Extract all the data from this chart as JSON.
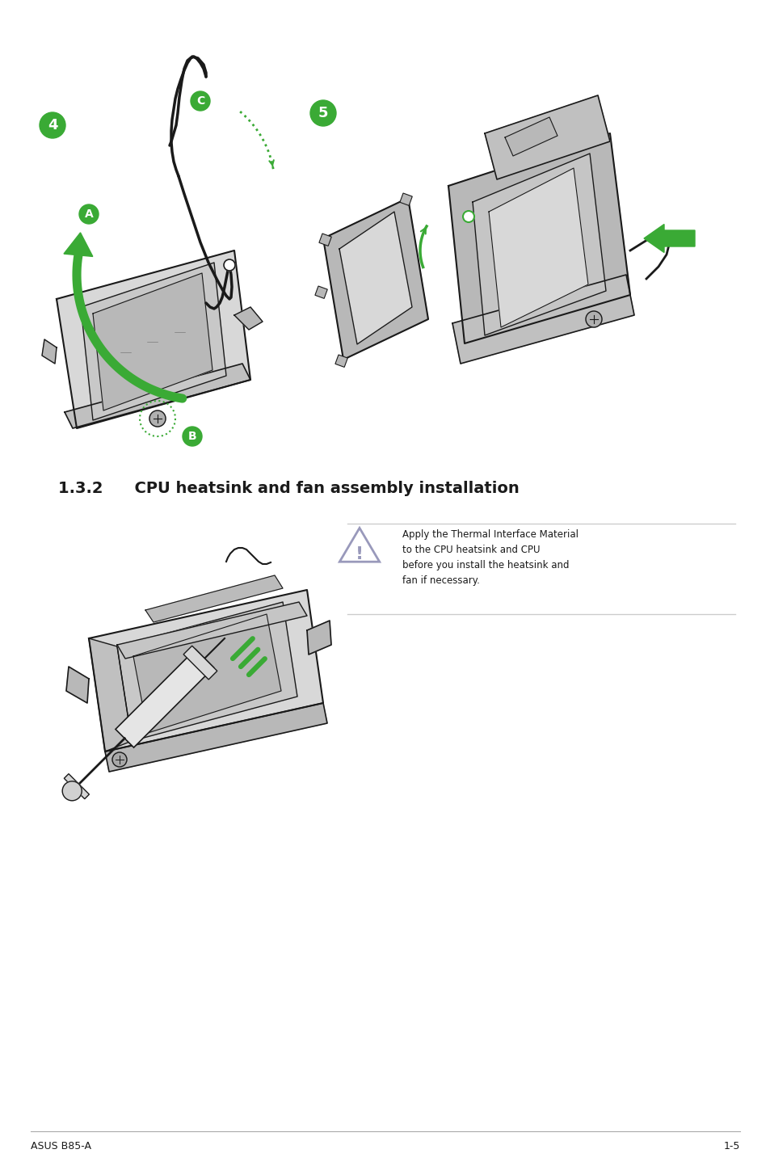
{
  "title": "1.3.2  CPU heatsink and fan assembly installation",
  "title_fontsize": 14,
  "title_fontweight": "bold",
  "footer_left": "ASUS B85-A",
  "footer_right": "1-5",
  "warning_text": "Apply the Thermal Interface Material\nto the CPU heatsink and CPU\nbefore you install the heatsink and\nfan if necessary.",
  "warning_fontsize": 8.5,
  "bg_color": "#ffffff",
  "green_color": "#3aaa35",
  "dark_color": "#1a1a1a",
  "gray_light": "#d8d8d8",
  "gray_med": "#b8b8b8",
  "gray_dark": "#888888",
  "warn_tri_color": "#9999bb"
}
